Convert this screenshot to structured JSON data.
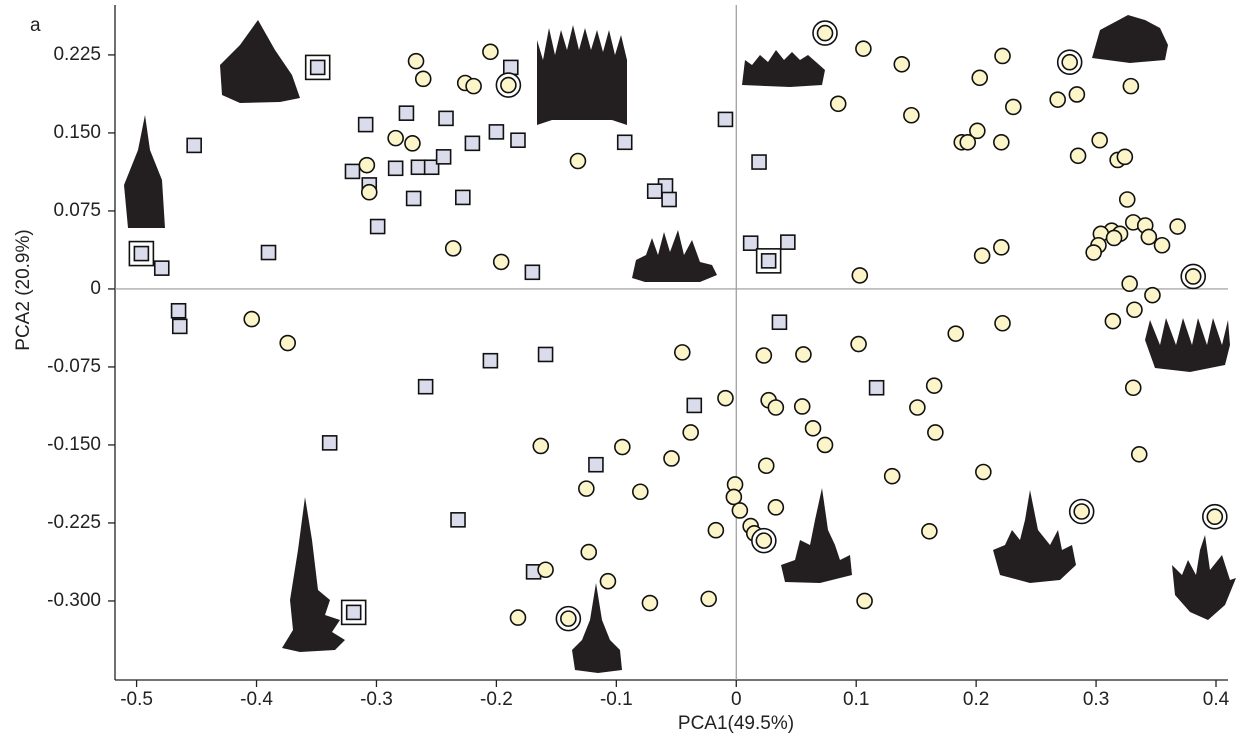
{
  "chart_data": {
    "type": "scatter",
    "panel_label": "a",
    "x_label": "PCA1(49.5%)",
    "y_label": "PCA2 (20.9%)",
    "xlim": [
      -0.518,
      0.41
    ],
    "ylim": [
      -0.376,
      0.273
    ],
    "xticks": [
      -0.5,
      -0.4,
      -0.3,
      -0.2,
      -0.1,
      0,
      0.1,
      0.2,
      0.3,
      0.4
    ],
    "yticks": [
      0.225,
      {
        "value": 0.15,
        "label": "0.150"
      },
      0.075,
      0,
      -0.075,
      {
        "value": -0.15,
        "label": "-0.150"
      },
      -0.225,
      {
        "value": -0.3,
        "label": "-0.300"
      }
    ],
    "zero_lines": true,
    "series": [
      {
        "marker": "square",
        "ringed": false,
        "color": "#dadcec",
        "x": [
          -0.452,
          -0.479,
          -0.39,
          -0.465,
          -0.464,
          -0.309,
          -0.275,
          -0.32,
          -0.306,
          -0.284,
          -0.265,
          -0.254,
          -0.269,
          -0.242,
          -0.244,
          -0.22,
          -0.2,
          -0.182,
          -0.188,
          -0.228,
          -0.299,
          -0.093,
          -0.17,
          -0.059,
          -0.068,
          -0.056,
          -0.009,
          0.019,
          0.012,
          0.043,
          0.036,
          -0.159,
          -0.205,
          -0.259,
          -0.339,
          -0.035,
          -0.117,
          -0.232,
          -0.169,
          0.117
        ],
        "y": [
          0.138,
          0.02,
          0.035,
          -0.021,
          -0.036,
          0.158,
          0.169,
          0.113,
          0.1,
          0.116,
          0.117,
          0.117,
          0.087,
          0.164,
          0.127,
          0.14,
          0.151,
          0.143,
          0.213,
          0.088,
          0.06,
          0.141,
          0.016,
          0.099,
          0.094,
          0.086,
          0.163,
          0.122,
          0.044,
          0.045,
          -0.032,
          -0.063,
          -0.069,
          -0.094,
          -0.148,
          -0.112,
          -0.169,
          -0.222,
          -0.272,
          -0.095
        ]
      },
      {
        "marker": "square",
        "ringed": true,
        "color": "#dadcec",
        "x": [
          -0.349,
          -0.496,
          0.027,
          -0.319
        ],
        "y": [
          0.213,
          0.034,
          0.027,
          -0.311
        ]
      },
      {
        "marker": "circle",
        "ringed": false,
        "color": "#fbf5c9",
        "x": [
          -0.267,
          -0.261,
          -0.205,
          -0.226,
          -0.219,
          -0.284,
          -0.27,
          -0.308,
          -0.306,
          -0.132,
          -0.236,
          -0.196,
          0.106,
          0.138,
          0.085,
          0.146,
          0.203,
          0.222,
          0.231,
          0.201,
          0.188,
          0.193,
          0.221,
          0.268,
          0.284,
          0.329,
          0.303,
          0.285,
          0.318,
          0.324,
          0.326,
          0.331,
          0.341,
          0.313,
          0.32,
          0.304,
          0.315,
          0.302,
          0.298,
          0.344,
          0.355,
          0.368,
          0.221,
          0.205,
          0.103,
          0.328,
          0.347,
          0.332,
          0.314,
          0.222,
          0.183,
          0.102,
          -0.404,
          -0.374,
          -0.045,
          0.023,
          0.056,
          0.165,
          0.331,
          -0.009,
          0.027,
          0.033,
          0.055,
          0.151,
          0.064,
          0.166,
          0.074,
          -0.038,
          -0.095,
          -0.163,
          -0.054,
          0.025,
          0.336,
          0.13,
          0.206,
          -0.001,
          -0.125,
          -0.08,
          -0.002,
          0.003,
          0.033,
          -0.017,
          0.012,
          0.015,
          0.161,
          -0.123,
          -0.159,
          -0.107,
          -0.023,
          -0.072,
          0.107,
          -0.182
        ],
        "y": [
          0.219,
          0.202,
          0.228,
          0.198,
          0.195,
          0.145,
          0.14,
          0.119,
          0.093,
          0.123,
          0.039,
          0.026,
          0.231,
          0.216,
          0.178,
          0.167,
          0.203,
          0.224,
          0.175,
          0.152,
          0.141,
          0.141,
          0.141,
          0.182,
          0.187,
          0.195,
          0.143,
          0.128,
          0.124,
          0.127,
          0.086,
          0.064,
          0.061,
          0.056,
          0.053,
          0.053,
          0.049,
          0.042,
          0.035,
          0.05,
          0.042,
          0.06,
          0.04,
          0.032,
          0.013,
          0.005,
          -0.006,
          -0.02,
          -0.031,
          -0.033,
          -0.043,
          -0.053,
          -0.029,
          -0.052,
          -0.061,
          -0.064,
          -0.063,
          -0.093,
          -0.095,
          -0.105,
          -0.107,
          -0.114,
          -0.113,
          -0.114,
          -0.134,
          -0.138,
          -0.15,
          -0.138,
          -0.152,
          -0.151,
          -0.163,
          -0.17,
          -0.159,
          -0.18,
          -0.176,
          -0.188,
          -0.192,
          -0.195,
          -0.2,
          -0.213,
          -0.21,
          -0.232,
          -0.228,
          -0.235,
          -0.233,
          -0.253,
          -0.27,
          -0.281,
          -0.298,
          -0.302,
          -0.3,
          -0.316
        ]
      },
      {
        "marker": "circle",
        "ringed": true,
        "color": "#fbf5c9",
        "x": [
          -0.19,
          0.074,
          0.278,
          0.381,
          0.288,
          0.399,
          0.023,
          -0.14
        ],
        "y": [
          0.196,
          0.246,
          0.218,
          0.012,
          -0.214,
          -0.219,
          -0.242,
          -0.317
        ]
      }
    ]
  }
}
